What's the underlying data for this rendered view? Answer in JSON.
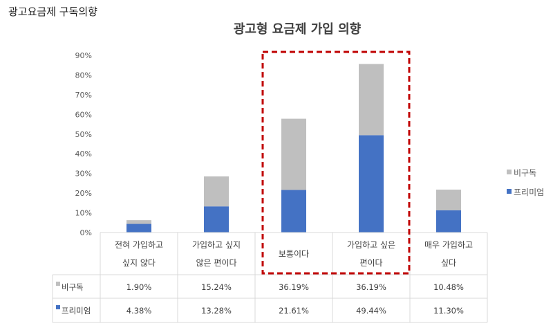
{
  "page_label": "광고요금제 구독의향",
  "colors": {
    "premium": "#4472C4",
    "nonsub": "#BFBFBF",
    "highlight": "#C00000"
  },
  "chart_data": {
    "type": "bar",
    "stacked": true,
    "title": "광고형 요금제 가입 의향",
    "categories": [
      [
        "전혀 가입하고",
        "싶지 않다"
      ],
      [
        "가입하고 싶지",
        "않은 편이다"
      ],
      [
        "보통이다"
      ],
      [
        "가입하고 싶은",
        "편이다"
      ],
      [
        "매우 가입하고",
        "싶다"
      ]
    ],
    "series": [
      {
        "name": "프리미엄",
        "values": [
          4.38,
          13.28,
          21.61,
          49.44,
          11.3
        ],
        "labels": [
          "4.38%",
          "13.28%",
          "21.61%",
          "49.44%",
          "11.30%"
        ]
      },
      {
        "name": "비구독",
        "values": [
          1.9,
          15.24,
          36.19,
          36.19,
          10.48
        ],
        "labels": [
          "1.90%",
          "15.24%",
          "36.19%",
          "36.19%",
          "10.48%"
        ]
      }
    ],
    "ylim": [
      0,
      90
    ],
    "yticks": [
      "0%",
      "10%",
      "20%",
      "30%",
      "40%",
      "50%",
      "60%",
      "70%",
      "80%",
      "90%"
    ],
    "legend": [
      "비구독",
      "프리미엄"
    ],
    "legend_position": "right",
    "grid": false,
    "data_table": true,
    "highlighted_categories": [
      "보통이다",
      "가입하고 싶은 편이다"
    ]
  }
}
